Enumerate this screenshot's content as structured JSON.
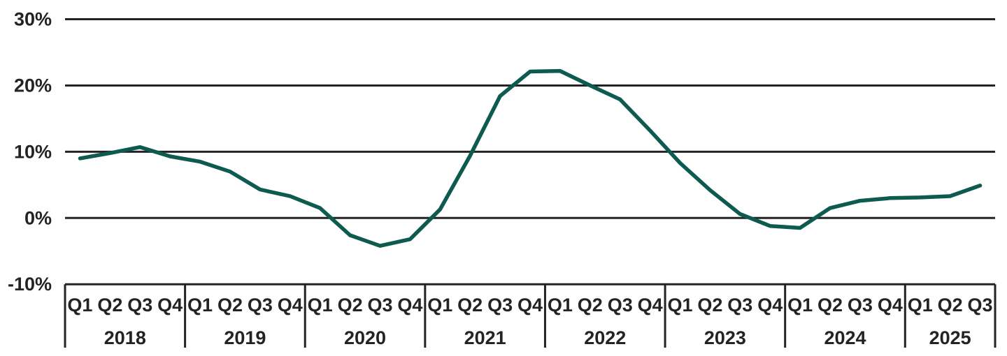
{
  "chart_data": {
    "type": "line",
    "grid": "horizontal-only",
    "legend": "none",
    "ylim": [
      -10,
      30
    ],
    "y_ticks": {
      "values": [
        30,
        20,
        10,
        0,
        -10
      ],
      "labels": [
        "30%",
        "20%",
        "10%",
        "0%",
        "-10%"
      ]
    },
    "x_axis": {
      "year_groups": [
        {
          "year": "2018",
          "quarters": [
            "Q1",
            "Q2",
            "Q3",
            "Q4"
          ]
        },
        {
          "year": "2019",
          "quarters": [
            "Q1",
            "Q2",
            "Q3",
            "Q4"
          ]
        },
        {
          "year": "2020",
          "quarters": [
            "Q1",
            "Q2",
            "Q3",
            "Q4"
          ]
        },
        {
          "year": "2021",
          "quarters": [
            "Q1",
            "Q2",
            "Q3",
            "Q4"
          ]
        },
        {
          "year": "2022",
          "quarters": [
            "Q1",
            "Q2",
            "Q3",
            "Q4"
          ]
        },
        {
          "year": "2023",
          "quarters": [
            "Q1",
            "Q2",
            "Q3",
            "Q4"
          ]
        },
        {
          "year": "2024",
          "quarters": [
            "Q1",
            "Q2",
            "Q3",
            "Q4"
          ]
        },
        {
          "year": "2025",
          "quarters": [
            "Q1",
            "Q2",
            "Q3"
          ]
        }
      ]
    },
    "series": [
      {
        "name": "quarterly-percentage",
        "color": "#0d5a4f",
        "values": [
          9.0,
          9.8,
          10.7,
          9.3,
          8.5,
          7.0,
          4.3,
          3.3,
          1.5,
          -2.6,
          -4.2,
          -3.2,
          1.3,
          9.4,
          18.4,
          22.1,
          22.2,
          20.0,
          17.9,
          13.2,
          8.3,
          4.2,
          0.6,
          -1.2,
          -1.5,
          1.5,
          2.6,
          3.0,
          3.1,
          3.3,
          4.9
        ]
      }
    ]
  },
  "colors": {
    "background": "#ffffff",
    "grid": "#232323",
    "text": "#232323",
    "series": "#0d5a4f"
  }
}
